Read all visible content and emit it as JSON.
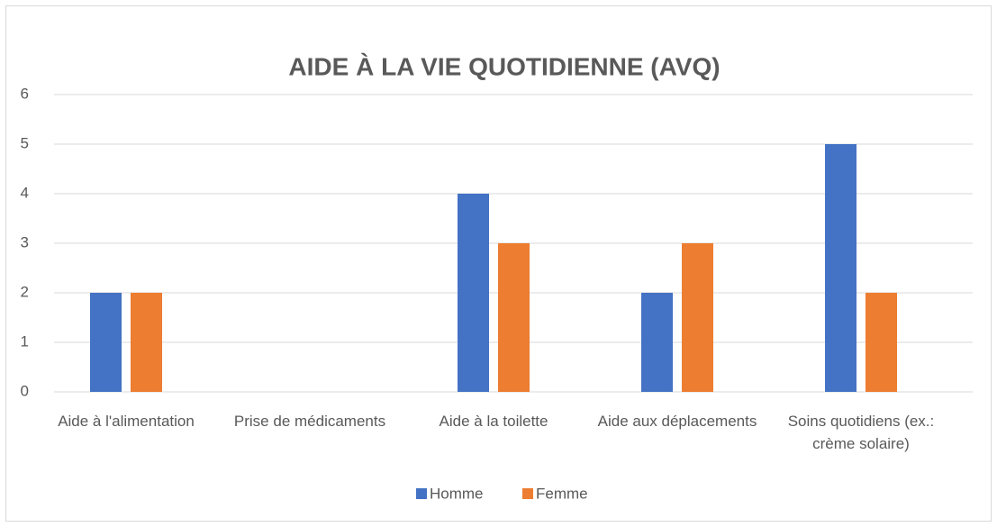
{
  "chart_data": {
    "type": "bar",
    "title": "AIDE À LA VIE QUOTIDIENNE (AVQ)",
    "categories": [
      "Aide à l'alimentation",
      "Prise de médicaments",
      "Aide à la toilette",
      "Aide aux déplacements",
      "Soins quotidiens (ex.: crème solaire)"
    ],
    "series": [
      {
        "name": "Homme",
        "color": "#4472c4",
        "values": [
          2,
          0,
          4,
          2,
          5
        ]
      },
      {
        "name": "Femme",
        "color": "#ed7d31",
        "values": [
          2,
          0,
          3,
          3,
          2
        ]
      }
    ],
    "ylim": [
      0,
      6
    ],
    "yticks": [
      0,
      1,
      2,
      3,
      4,
      5,
      6
    ],
    "grid": true,
    "legend": "bottom"
  }
}
